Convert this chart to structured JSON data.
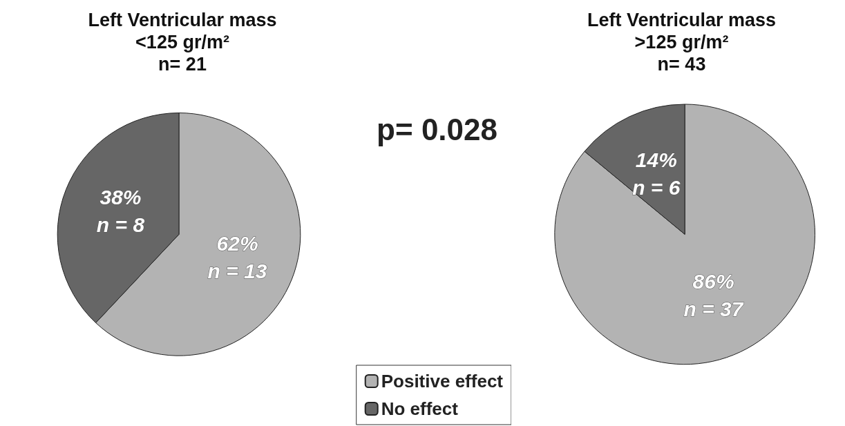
{
  "chart_data": [
    {
      "type": "pie",
      "title": "Left Ventricular mass\n<125 gr/m²\nn= 21",
      "categories": [
        "Positive effect",
        "No effect"
      ],
      "values": [
        62,
        38
      ],
      "colors": [
        "#b3b3b3",
        "#666666"
      ],
      "value_labels": [
        "62%\nn = 13",
        "38%\nn = 8"
      ],
      "legend": "bottom right",
      "annotations": [
        "p= 0.028"
      ]
    },
    {
      "type": "pie",
      "title": "Left Ventricular mass\n>125 gr/m²\nn= 43",
      "categories": [
        null,
        null
      ],
      "values": [
        86,
        14
      ],
      "colors": [
        "#b3b3b3",
        "#666666"
      ],
      "value_labels": [
        "86%\nn = 37",
        "14%\nn = 6"
      ]
    }
  ]
}
